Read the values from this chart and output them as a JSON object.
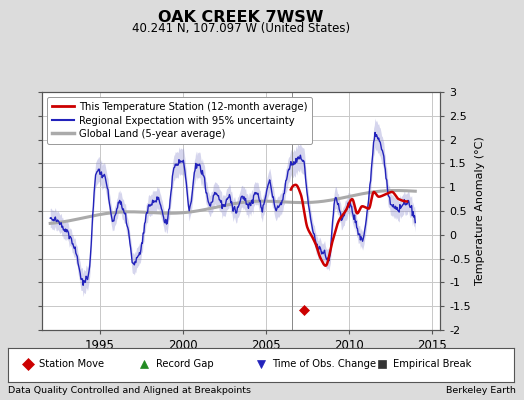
{
  "title": "OAK CREEK 7WSW",
  "subtitle": "40.241 N, 107.097 W (United States)",
  "ylabel": "Temperature Anomaly (°C)",
  "footer_left": "Data Quality Controlled and Aligned at Breakpoints",
  "footer_right": "Berkeley Earth",
  "xlim": [
    1991.5,
    2015.5
  ],
  "ylim": [
    -2.0,
    3.0
  ],
  "yticks": [
    -2,
    -1.5,
    -1,
    -0.5,
    0,
    0.5,
    1,
    1.5,
    2,
    2.5,
    3
  ],
  "xticks": [
    1995,
    2000,
    2005,
    2010,
    2015
  ],
  "background_color": "#dcdcdc",
  "plot_background": "#ffffff",
  "grid_color": "#c8c8c8",
  "station_move_x": 2007.3,
  "station_move_y": -1.58,
  "legend_entries": [
    {
      "label": "This Temperature Station (12-month average)",
      "color": "#cc0000",
      "lw": 2.0
    },
    {
      "label": "Regional Expectation with 95% uncertainty",
      "color": "#2222bb",
      "lw": 1.5
    },
    {
      "label": "Global Land (5-year average)",
      "color": "#aaaaaa",
      "lw": 2.5
    }
  ],
  "marker_legend": [
    {
      "label": "Station Move",
      "color": "#cc0000",
      "marker": "D"
    },
    {
      "label": "Record Gap",
      "color": "#228B22",
      "marker": "^"
    },
    {
      "label": "Time of Obs. Change",
      "color": "#2222bb",
      "marker": "v"
    },
    {
      "label": "Empirical Break",
      "color": "#333333",
      "marker": "s"
    }
  ]
}
